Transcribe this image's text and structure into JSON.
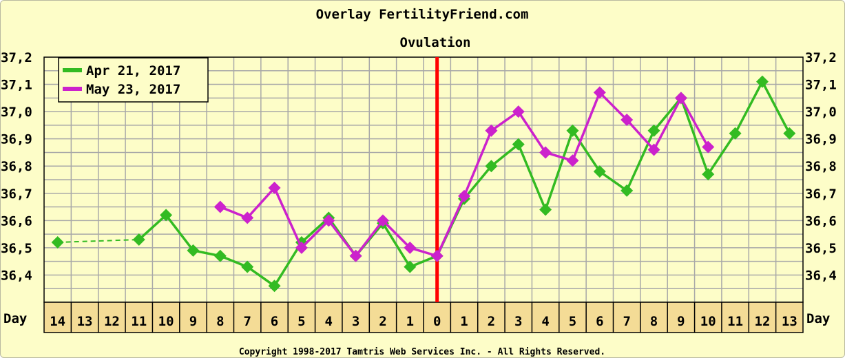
{
  "chart_data": {
    "type": "line",
    "title": "Overlay FertilityFriend.com",
    "subtitle": "Ovulation",
    "xlabel": "Day",
    "y_ticks": [
      "37,2",
      "37,1",
      "37,0",
      "36,9",
      "36,8",
      "36,7",
      "36,6",
      "36,5",
      "36,4"
    ],
    "ylim": [
      36.3,
      37.2
    ],
    "x_positions": [
      -14,
      -13,
      -12,
      -11,
      -10,
      -9,
      -8,
      -7,
      -6,
      -5,
      -4,
      -3,
      -2,
      -1,
      0,
      1,
      2,
      3,
      4,
      5,
      6,
      7,
      8,
      9,
      10,
      11,
      12,
      13
    ],
    "x_tick_labels": [
      "14",
      "13",
      "12",
      "11",
      "10",
      "9",
      "8",
      "7",
      "6",
      "5",
      "4",
      "3",
      "2",
      "1",
      "0",
      "1",
      "2",
      "3",
      "4",
      "5",
      "6",
      "7",
      "8",
      "9",
      "10",
      "11",
      "12",
      "13"
    ],
    "ovulation_day": 0,
    "ovulation_color": "#ff0000",
    "grid": true,
    "legend_position": "top-left",
    "series": [
      {
        "name": "Apr 21, 2017",
        "color": "#33bb22",
        "points": [
          {
            "x": -14,
            "y": 36.52
          },
          {
            "x": -11,
            "y": 36.53
          },
          {
            "x": -10,
            "y": 36.62
          },
          {
            "x": -9,
            "y": 36.49
          },
          {
            "x": -8,
            "y": 36.47
          },
          {
            "x": -7,
            "y": 36.43
          },
          {
            "x": -6,
            "y": 36.36
          },
          {
            "x": -5,
            "y": 36.52
          },
          {
            "x": -4,
            "y": 36.61
          },
          {
            "x": -3,
            "y": 36.47
          },
          {
            "x": -2,
            "y": 36.59
          },
          {
            "x": -1,
            "y": 36.43
          },
          {
            "x": 0,
            "y": 36.47
          },
          {
            "x": 1,
            "y": 36.68
          },
          {
            "x": 2,
            "y": 36.8
          },
          {
            "x": 3,
            "y": 36.88
          },
          {
            "x": 4,
            "y": 36.64
          },
          {
            "x": 5,
            "y": 36.93
          },
          {
            "x": 6,
            "y": 36.78
          },
          {
            "x": 7,
            "y": 36.71
          },
          {
            "x": 8,
            "y": 36.93
          },
          {
            "x": 9,
            "y": 37.05
          },
          {
            "x": 10,
            "y": 36.77
          },
          {
            "x": 11,
            "y": 36.92
          },
          {
            "x": 12,
            "y": 37.11
          },
          {
            "x": 13,
            "y": 36.92
          }
        ],
        "dashed_gap": [
          -14,
          -11
        ]
      },
      {
        "name": "May 23, 2017",
        "color": "#cc22cc",
        "points": [
          {
            "x": -8,
            "y": 36.65
          },
          {
            "x": -7,
            "y": 36.61
          },
          {
            "x": -6,
            "y": 36.72
          },
          {
            "x": -5,
            "y": 36.5
          },
          {
            "x": -4,
            "y": 36.6
          },
          {
            "x": -3,
            "y": 36.47
          },
          {
            "x": -2,
            "y": 36.6
          },
          {
            "x": -1,
            "y": 36.5
          },
          {
            "x": 0,
            "y": 36.47
          },
          {
            "x": 1,
            "y": 36.69
          },
          {
            "x": 2,
            "y": 36.93
          },
          {
            "x": 3,
            "y": 37.0
          },
          {
            "x": 4,
            "y": 36.85
          },
          {
            "x": 5,
            "y": 36.82
          },
          {
            "x": 6,
            "y": 37.07
          },
          {
            "x": 7,
            "y": 36.97
          },
          {
            "x": 8,
            "y": 36.86
          },
          {
            "x": 9,
            "y": 37.05
          },
          {
            "x": 10,
            "y": 36.87
          }
        ]
      }
    ]
  },
  "footer": {
    "copyright": "Copyright 1998-2017 Tamtris Web Services Inc. - All Rights Reserved."
  }
}
